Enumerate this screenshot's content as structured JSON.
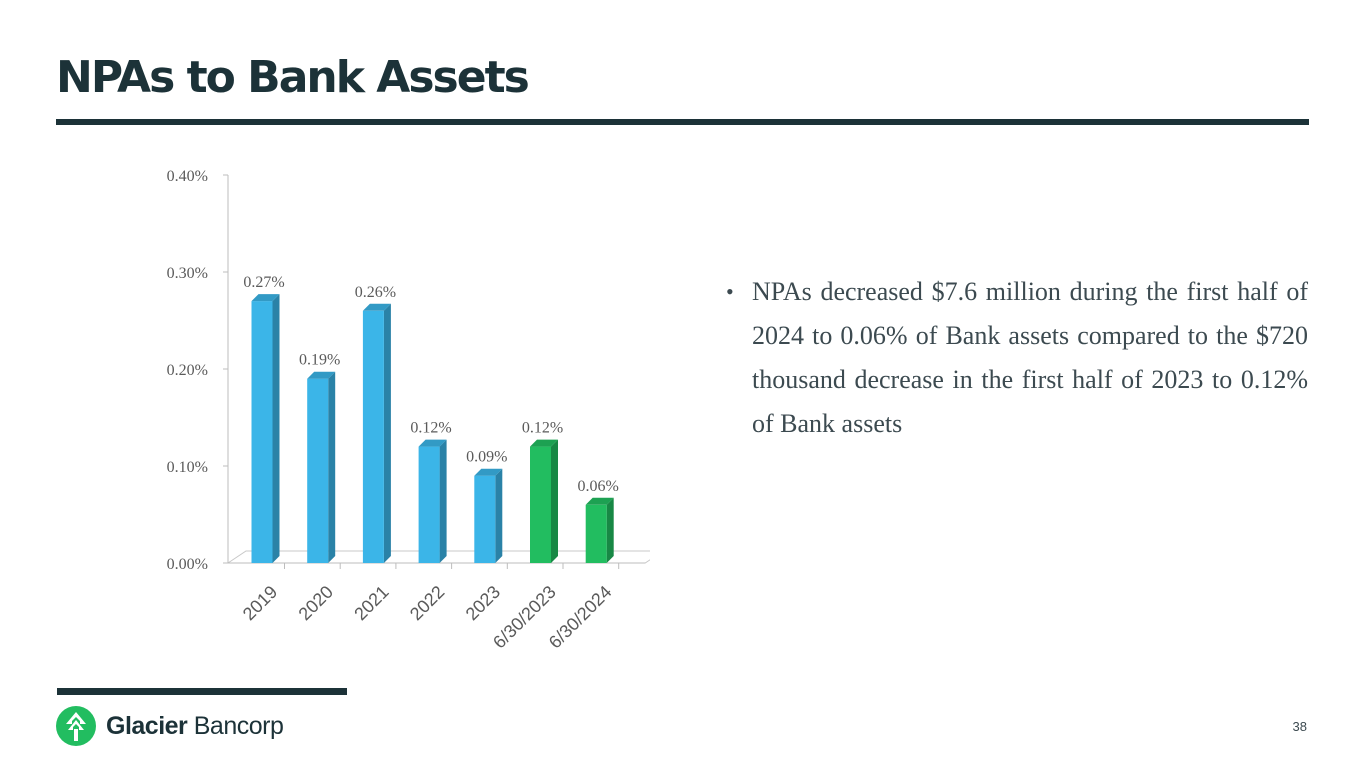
{
  "header": {
    "title": "NPAs to Bank Assets"
  },
  "bullets": [
    "NPAs decreased $7.6 million during the first half of 2024 to 0.06% of Bank assets compared to the $720 thousand decrease in the first half of 2023 to 0.12% of Bank assets"
  ],
  "footer": {
    "logo_word_bold": "Glacier",
    "logo_word_light": "Bancorp",
    "page_number": "38"
  },
  "chart_data": {
    "type": "bar",
    "categories": [
      "2019",
      "2020",
      "2021",
      "2022",
      "2023",
      "6/30/2023",
      "6/30/2024"
    ],
    "values": [
      0.27,
      0.19,
      0.26,
      0.12,
      0.09,
      0.12,
      0.06
    ],
    "data_labels": [
      "0.27%",
      "0.19%",
      "0.26%",
      "0.12%",
      "0.09%",
      "0.12%",
      "0.06%"
    ],
    "y_ticks": [
      "0.00%",
      "0.10%",
      "0.20%",
      "0.30%",
      "0.40%"
    ],
    "ylim": [
      0,
      0.4
    ],
    "bar_colors": [
      "#3bb5e8",
      "#3bb5e8",
      "#3bb5e8",
      "#3bb5e8",
      "#3bb5e8",
      "#22bd60",
      "#22bd60"
    ],
    "title": "",
    "xlabel": "",
    "ylabel": "",
    "grid": false
  }
}
